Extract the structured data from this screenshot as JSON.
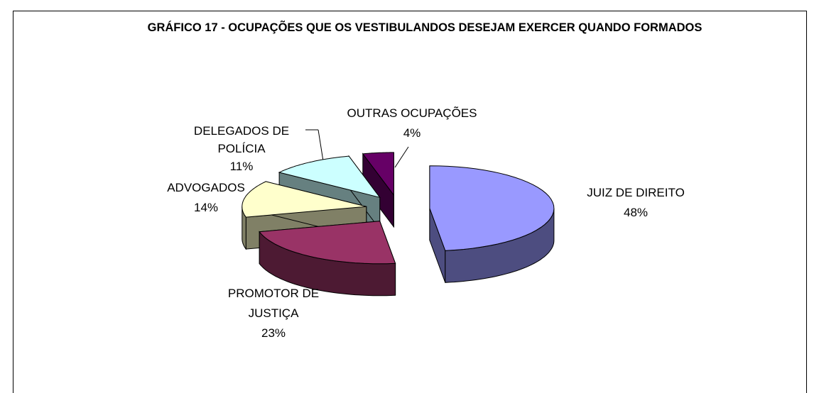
{
  "chart_data": {
    "type": "pie",
    "title": "GRÁFICO 17 - OCUPAÇÕES QUE OS VESTIBULANDOS DESEJAM EXERCER QUANDO FORMADOS",
    "categories": [
      "JUIZ DE DIREITO",
      "PROMOTOR DE JUSTIÇA",
      "ADVOGADOS",
      "DELEGADOS DE POLÍCIA",
      "OUTRAS OCUPAÇÕES"
    ],
    "values": [
      48,
      23,
      14,
      11,
      4
    ],
    "value_labels": [
      "48%",
      "23%",
      "14%",
      "11%",
      "4%"
    ],
    "colors": [
      "#9999ff",
      "#993366",
      "#ffffcc",
      "#ccffff",
      "#660066"
    ]
  }
}
